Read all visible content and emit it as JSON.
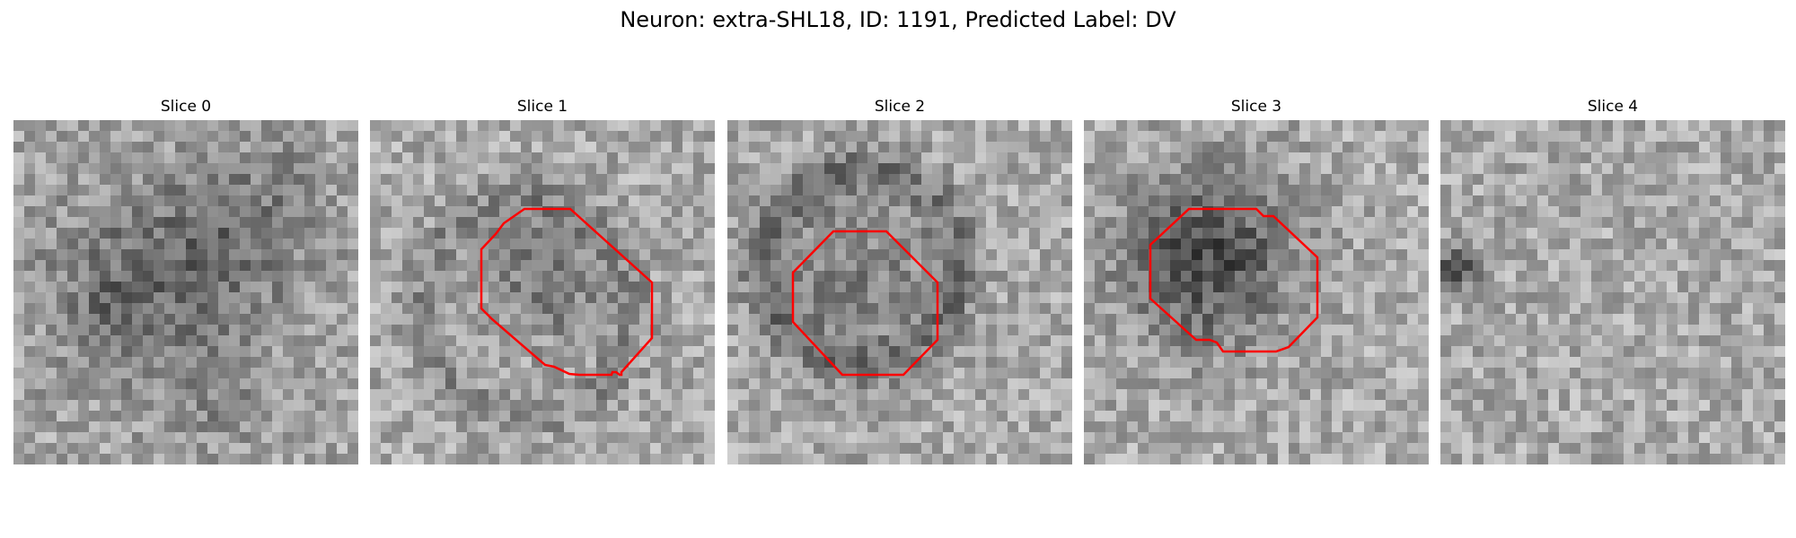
{
  "suptitle": "Neuron: extra-SHL18, ID: 1191, Predicted Label: DV",
  "colors": {
    "contour": "#ff0000",
    "background": "#ffffff",
    "colormap": "gray"
  },
  "panels": [
    {
      "title": "Slice 0",
      "has_roi": false
    },
    {
      "title": "Slice 1",
      "has_roi": true
    },
    {
      "title": "Slice 2",
      "has_roi": true
    },
    {
      "title": "Slice 3",
      "has_roi": true
    },
    {
      "title": "Slice 4",
      "has_roi": false
    }
  ]
}
